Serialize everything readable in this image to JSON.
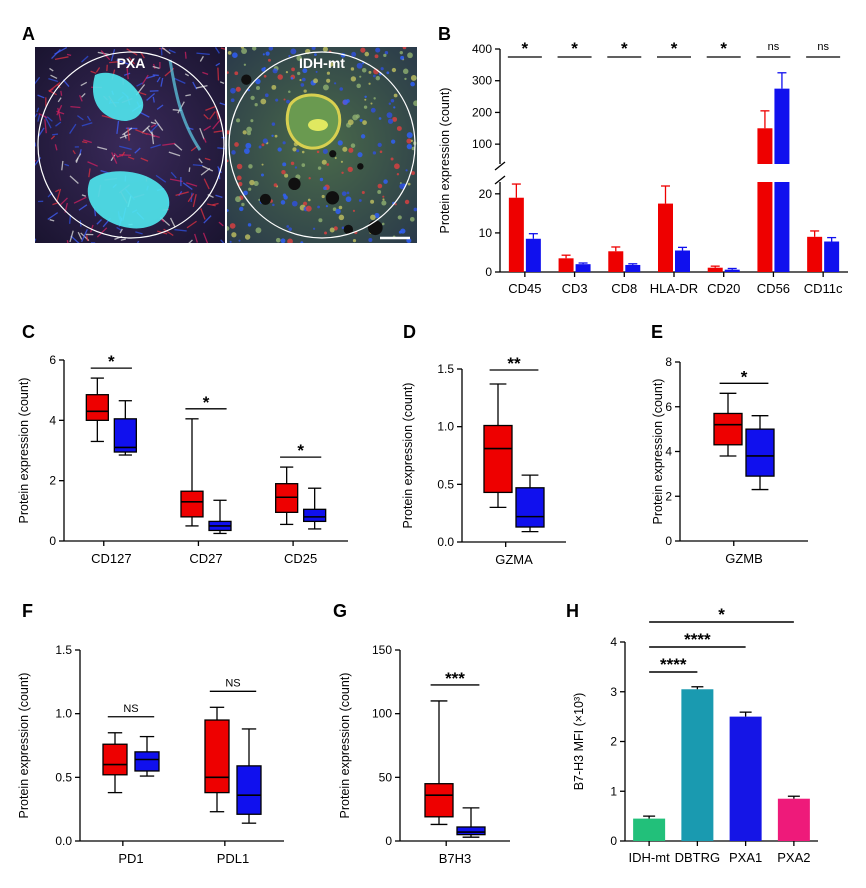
{
  "colors": {
    "red": "#ee0000",
    "blue": "#1010ee",
    "idh": "#22c07a",
    "dbtrg": "#1a9ab0",
    "pxa1": "#1515e6",
    "pxa2": "#ee1a7a"
  },
  "panel_a": {
    "letter": "A",
    "left_label": "PXA",
    "right_label": "IDH-mt"
  },
  "chart_data": [
    {
      "id": "B",
      "letter": "B",
      "type": "bar",
      "ylabel": "Protein expression (count)",
      "categories": [
        "CD45",
        "CD3",
        "CD8",
        "HLA-DR",
        "CD20",
        "CD56",
        "CD11c"
      ],
      "series": [
        {
          "name": "PXA",
          "color": "#ee0000",
          "values": [
            19,
            3.5,
            5.3,
            17.5,
            1.1,
            150,
            9
          ],
          "errors": [
            3.5,
            0.8,
            1.1,
            4.5,
            0.4,
            55,
            1.5
          ]
        },
        {
          "name": "IDH-mt",
          "color": "#1010ee",
          "values": [
            8.5,
            2,
            1.8,
            5.5,
            0.6,
            275,
            7.8
          ],
          "errors": [
            1.3,
            0.3,
            0.3,
            0.8,
            0.3,
            50,
            1.0
          ]
        }
      ],
      "lower_axis": {
        "ylim": [
          0,
          22
        ],
        "ticks": [
          0,
          10,
          20
        ]
      },
      "upper_axis": {
        "ylim": [
          50,
          400
        ],
        "ticks": [
          100,
          200,
          300,
          400
        ]
      },
      "significance": [
        "*",
        "*",
        "*",
        "*",
        "*",
        "ns",
        "ns"
      ]
    },
    {
      "id": "C",
      "letter": "C",
      "type": "box",
      "ylabel": "Protein expression (count)",
      "ylim": [
        0,
        6
      ],
      "ticks": [
        0,
        2,
        4,
        6
      ],
      "groups": [
        {
          "label": "CD127",
          "sig": "*",
          "red": {
            "min": 3.3,
            "q1": 4.0,
            "median": 4.3,
            "q3": 4.85,
            "max": 5.4
          },
          "blue": {
            "min": 2.85,
            "q1": 2.95,
            "median": 3.1,
            "q3": 4.05,
            "max": 4.65
          }
        },
        {
          "label": "CD27",
          "sig": "*",
          "red": {
            "min": 0.5,
            "q1": 0.8,
            "median": 1.3,
            "q3": 1.65,
            "max": 4.05
          },
          "blue": {
            "min": 0.25,
            "q1": 0.35,
            "median": 0.5,
            "q3": 0.65,
            "max": 1.35
          }
        },
        {
          "label": "CD25",
          "sig": "*",
          "red": {
            "min": 0.55,
            "q1": 0.95,
            "median": 1.45,
            "q3": 1.9,
            "max": 2.45
          },
          "blue": {
            "min": 0.4,
            "q1": 0.65,
            "median": 0.8,
            "q3": 1.05,
            "max": 1.75
          }
        }
      ]
    },
    {
      "id": "D",
      "letter": "D",
      "type": "box",
      "ylabel": "Protein expression (count)",
      "ylim": [
        0,
        1.5
      ],
      "ticks": [
        "0.0",
        "0.5",
        "1.0",
        "1.5"
      ],
      "groups": [
        {
          "label": "GZMA",
          "sig": "**",
          "red": {
            "min": 0.3,
            "q1": 0.43,
            "median": 0.81,
            "q3": 1.01,
            "max": 1.37
          },
          "blue": {
            "min": 0.09,
            "q1": 0.13,
            "median": 0.22,
            "q3": 0.47,
            "max": 0.58
          }
        }
      ]
    },
    {
      "id": "E",
      "letter": "E",
      "type": "box",
      "ylabel": "Protein expression (count)",
      "ylim": [
        0,
        8
      ],
      "ticks": [
        0,
        2,
        4,
        6,
        8
      ],
      "groups": [
        {
          "label": "GZMB",
          "sig": "*",
          "red": {
            "min": 3.8,
            "q1": 4.3,
            "median": 5.2,
            "q3": 5.7,
            "max": 6.6
          },
          "blue": {
            "min": 2.3,
            "q1": 2.9,
            "median": 3.8,
            "q3": 5.0,
            "max": 5.6
          }
        }
      ]
    },
    {
      "id": "F",
      "letter": "F",
      "type": "box",
      "ylabel": "Protein expression (count)",
      "ylim": [
        0,
        1.5
      ],
      "ticks": [
        "0.0",
        "0.5",
        "1.0",
        "1.5"
      ],
      "groups": [
        {
          "label": "PD1",
          "sig": "NS",
          "red": {
            "min": 0.38,
            "q1": 0.52,
            "median": 0.6,
            "q3": 0.76,
            "max": 0.85
          },
          "blue": {
            "min": 0.51,
            "q1": 0.55,
            "median": 0.64,
            "q3": 0.7,
            "max": 0.82
          }
        },
        {
          "label": "PDL1",
          "sig": "NS",
          "red": {
            "min": 0.23,
            "q1": 0.38,
            "median": 0.5,
            "q3": 0.95,
            "max": 1.05
          },
          "blue": {
            "min": 0.14,
            "q1": 0.21,
            "median": 0.36,
            "q3": 0.59,
            "max": 0.88
          }
        }
      ]
    },
    {
      "id": "G",
      "letter": "G",
      "type": "box",
      "ylabel": "Protein expression (count)",
      "ylim": [
        0,
        150
      ],
      "ticks": [
        0,
        50,
        100,
        150
      ],
      "groups": [
        {
          "label": "B7H3",
          "sig": "***",
          "red": {
            "min": 13,
            "q1": 19,
            "median": 36,
            "q3": 45,
            "max": 110
          },
          "blue": {
            "min": 3,
            "q1": 5,
            "median": 7,
            "q3": 11,
            "max": 26
          }
        }
      ]
    },
    {
      "id": "H",
      "letter": "H",
      "type": "bar",
      "ylabel": "B7-H3 MFI (×10³)",
      "ylim": [
        0,
        4
      ],
      "ticks": [
        0,
        1,
        2,
        3,
        4
      ],
      "categories": [
        "IDH-mt",
        "DBTRG",
        "PXA1",
        "PXA2"
      ],
      "values": [
        0.45,
        3.05,
        2.5,
        0.85
      ],
      "errors": [
        0.05,
        0.05,
        0.09,
        0.05
      ],
      "colors": [
        "#22c07a",
        "#1a9ab0",
        "#1515e6",
        "#ee1a7a"
      ],
      "comparisons": [
        {
          "from": "IDH-mt",
          "to": "PXA2",
          "label": "*"
        },
        {
          "from": "IDH-mt",
          "to": "PXA1",
          "label": "****"
        },
        {
          "from": "IDH-mt",
          "to": "DBTRG",
          "label": "****"
        }
      ]
    }
  ]
}
